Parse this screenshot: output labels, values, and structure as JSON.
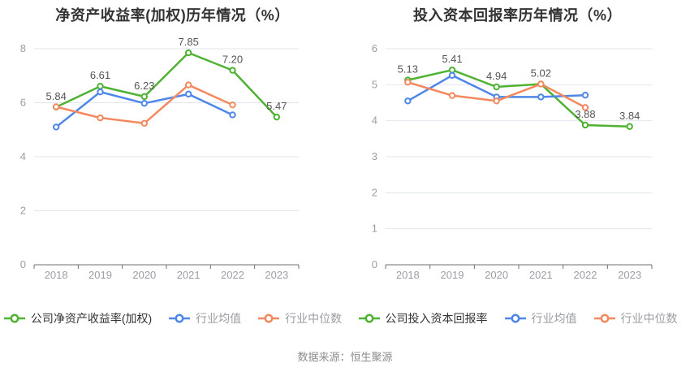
{
  "source_note": "数据来源：恒生聚源",
  "colors": {
    "company": "#4fb233",
    "industry_avg": "#4e87e9",
    "industry_median": "#f4895f",
    "grid_line": "#e0e6f1",
    "axis_line": "#6e7079",
    "tick_label": "#9a9da4",
    "data_label": "#555555",
    "title_text": "#333333",
    "footer_text": "#8c8c8c"
  },
  "chart_data": [
    {
      "type": "line",
      "title": "净资产收益率(加权)历年情况（%）",
      "categories": [
        "2018",
        "2019",
        "2020",
        "2021",
        "2022",
        "2023"
      ],
      "ylim": [
        0,
        8
      ],
      "ytick_step": 2,
      "grid": true,
      "legend_position": "bottom",
      "series": [
        {
          "name": "公司净资产收益率(加权)",
          "color_key": "company",
          "values": [
            5.84,
            6.61,
            6.23,
            7.85,
            7.2,
            5.47
          ],
          "point_labels": [
            "5.84",
            "6.61",
            "6.23",
            "7.85",
            "7.20",
            "5.47"
          ]
        },
        {
          "name": "行业均值",
          "color_key": "industry_avg",
          "values": [
            5.1,
            6.4,
            5.98,
            6.32,
            5.55,
            null
          ],
          "point_labels": []
        },
        {
          "name": "行业中位数",
          "color_key": "industry_median",
          "values": [
            5.85,
            5.44,
            5.24,
            6.66,
            5.92,
            null
          ],
          "point_labels": []
        }
      ]
    },
    {
      "type": "line",
      "title": "投入资本回报率历年情况（%）",
      "categories": [
        "2018",
        "2019",
        "2020",
        "2021",
        "2022",
        "2023"
      ],
      "ylim": [
        0,
        6
      ],
      "ytick_step": 1,
      "grid": true,
      "legend_position": "bottom",
      "series": [
        {
          "name": "公司投入资本回报率",
          "color_key": "company",
          "values": [
            5.13,
            5.41,
            4.94,
            5.02,
            3.88,
            3.84
          ],
          "point_labels": [
            "5.13",
            "5.41",
            "4.94",
            "5.02",
            "3.88",
            "3.84"
          ]
        },
        {
          "name": "行业均值",
          "color_key": "industry_avg",
          "values": [
            4.55,
            5.26,
            4.66,
            4.66,
            4.71,
            null
          ],
          "point_labels": []
        },
        {
          "name": "行业中位数",
          "color_key": "industry_median",
          "values": [
            5.07,
            4.7,
            4.55,
            5.02,
            4.37,
            null
          ],
          "point_labels": []
        }
      ]
    }
  ]
}
